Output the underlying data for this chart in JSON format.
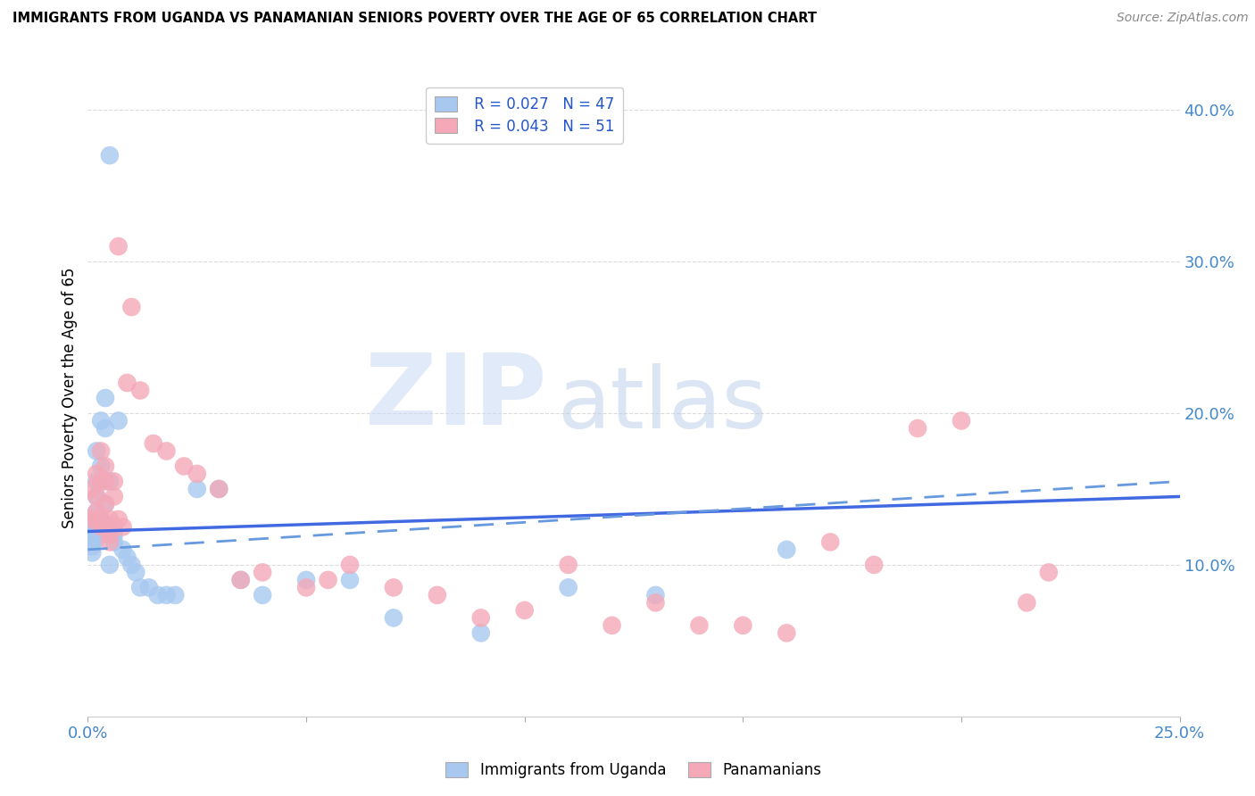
{
  "title": "IMMIGRANTS FROM UGANDA VS PANAMANIAN SENIORS POVERTY OVER THE AGE OF 65 CORRELATION CHART",
  "source": "Source: ZipAtlas.com",
  "ylabel": "Seniors Poverty Over the Age of 65",
  "legend_label_1": "Immigrants from Uganda",
  "legend_label_2": "Panamanians",
  "r1": 0.027,
  "n1": 47,
  "r2": 0.043,
  "n2": 51,
  "color1": "#a8c8f0",
  "color2": "#f4a8b8",
  "line_color1": "#4169e1",
  "line_color2": "#e05080",
  "line_color_dashed": "#6699dd",
  "xmin": 0.0,
  "xmax": 0.25,
  "ymin": 0.0,
  "ymax": 0.42,
  "scatter1_x": [
    0.001,
    0.001,
    0.001,
    0.001,
    0.001,
    0.001,
    0.001,
    0.002,
    0.002,
    0.002,
    0.002,
    0.002,
    0.002,
    0.003,
    0.003,
    0.003,
    0.003,
    0.004,
    0.004,
    0.004,
    0.005,
    0.005,
    0.005,
    0.006,
    0.006,
    0.007,
    0.008,
    0.009,
    0.01,
    0.011,
    0.012,
    0.014,
    0.016,
    0.018,
    0.02,
    0.025,
    0.03,
    0.035,
    0.04,
    0.05,
    0.06,
    0.07,
    0.09,
    0.11,
    0.13,
    0.16,
    0.005
  ],
  "scatter1_y": [
    0.12,
    0.125,
    0.13,
    0.115,
    0.118,
    0.112,
    0.108,
    0.117,
    0.122,
    0.135,
    0.145,
    0.155,
    0.175,
    0.125,
    0.13,
    0.165,
    0.195,
    0.14,
    0.19,
    0.21,
    0.155,
    0.125,
    0.1,
    0.12,
    0.115,
    0.195,
    0.11,
    0.105,
    0.1,
    0.095,
    0.085,
    0.085,
    0.08,
    0.08,
    0.08,
    0.15,
    0.15,
    0.09,
    0.08,
    0.09,
    0.09,
    0.065,
    0.055,
    0.085,
    0.08,
    0.11,
    0.37
  ],
  "scatter2_x": [
    0.001,
    0.001,
    0.002,
    0.002,
    0.002,
    0.002,
    0.003,
    0.003,
    0.003,
    0.003,
    0.004,
    0.004,
    0.004,
    0.005,
    0.005,
    0.005,
    0.006,
    0.006,
    0.006,
    0.007,
    0.007,
    0.008,
    0.009,
    0.01,
    0.012,
    0.015,
    0.018,
    0.022,
    0.025,
    0.03,
    0.035,
    0.04,
    0.05,
    0.055,
    0.06,
    0.07,
    0.08,
    0.09,
    0.1,
    0.11,
    0.12,
    0.13,
    0.14,
    0.15,
    0.16,
    0.17,
    0.18,
    0.19,
    0.2,
    0.215,
    0.22
  ],
  "scatter2_y": [
    0.13,
    0.15,
    0.135,
    0.145,
    0.16,
    0.13,
    0.125,
    0.155,
    0.175,
    0.13,
    0.14,
    0.155,
    0.165,
    0.13,
    0.12,
    0.115,
    0.145,
    0.125,
    0.155,
    0.31,
    0.13,
    0.125,
    0.22,
    0.27,
    0.215,
    0.18,
    0.175,
    0.165,
    0.16,
    0.15,
    0.09,
    0.095,
    0.085,
    0.09,
    0.1,
    0.085,
    0.08,
    0.065,
    0.07,
    0.1,
    0.06,
    0.075,
    0.06,
    0.06,
    0.055,
    0.115,
    0.1,
    0.19,
    0.195,
    0.075,
    0.095
  ],
  "trendline1_y0": 0.122,
  "trendline1_y1": 0.145,
  "trendline2_y0": 0.11,
  "trendline2_y1": 0.155,
  "watermark_zip": "ZIP",
  "watermark_atlas": "atlas",
  "watermark_color_zip": "#c8d8f0",
  "watermark_color_atlas": "#c8d8f0",
  "grid_color": "#cccccc"
}
